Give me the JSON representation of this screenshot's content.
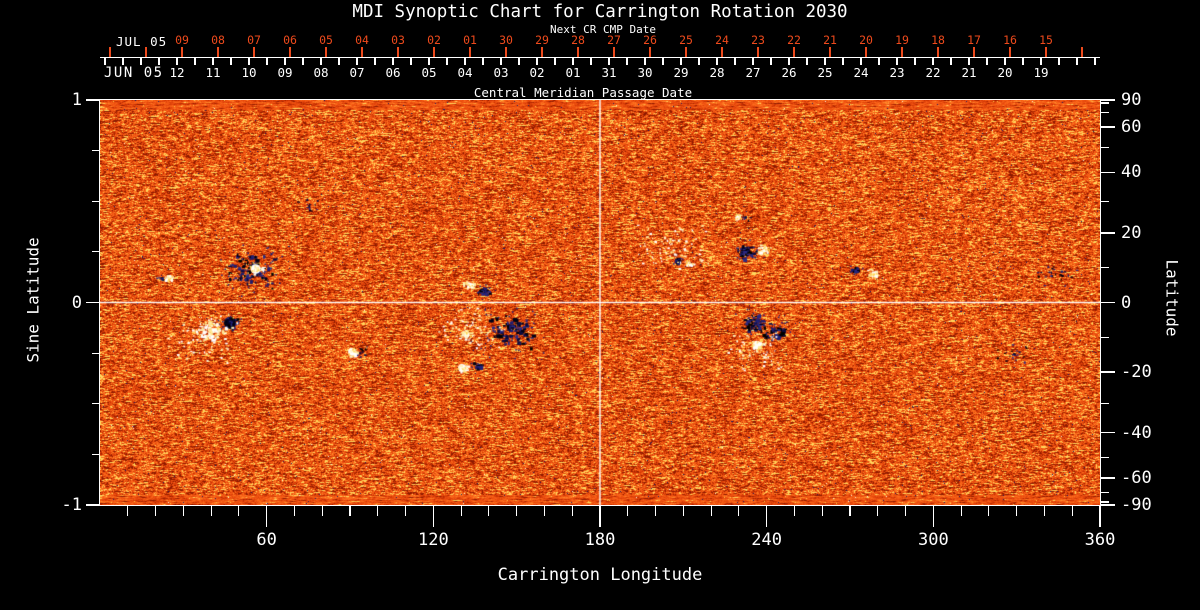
{
  "colors": {
    "background": "#000000",
    "axis": "#ffffff",
    "next_cr_axis": "#ee4a1c",
    "crosshair": "#ffffff",
    "negative_polarity": "#14144c",
    "positive_polarity": "#ffffff",
    "noise_palette": [
      "#8c1a00",
      "#c32f02",
      "#e2440b",
      "#f25713",
      "#fc6b1c",
      "#ff8f2e",
      "#ffd85e"
    ]
  },
  "chart_data": {
    "type": "heatmap",
    "title": "MDI Synoptic Chart for Carrington Rotation 2030",
    "xlabel": "Carrington Longitude",
    "ylabel_left": "Sine Latitude",
    "ylabel_right": "Latitude",
    "xlim": [
      0,
      360
    ],
    "ylim": [
      -1,
      1
    ],
    "x_major_ticks": [
      60,
      120,
      180,
      240,
      300,
      360
    ],
    "x_minor_step_deg": 10,
    "left_major_ticks": [
      "1",
      "0",
      "-1"
    ],
    "left_minor_values": [
      0.75,
      0.5,
      0.25,
      -0.25,
      -0.5,
      -0.75
    ],
    "right_major_ticks": [
      "90",
      "60",
      "40",
      "20",
      "0",
      "-20",
      "-40",
      "-60",
      "-90"
    ],
    "right_minor_lats": [
      80,
      70,
      50,
      30,
      10,
      -10,
      -30,
      -50,
      -70,
      -80
    ],
    "top_axes": {
      "next_cr": {
        "side_label": "JUL 05",
        "axis_title": "Next CR CMP Date",
        "tick_labels": [
          "09",
          "08",
          "07",
          "06",
          "05",
          "04",
          "03",
          "02",
          "01",
          "30",
          "29",
          "28",
          "27",
          "26",
          "25",
          "24",
          "23",
          "22",
          "21",
          "20",
          "19",
          "18",
          "17",
          "16",
          "15"
        ],
        "color": "#ee4a1c"
      },
      "cmp": {
        "side_label": "JUN 05",
        "axis_title": "Central Meridian Passage Date",
        "tick_labels": [
          "12",
          "11",
          "10",
          "09",
          "08",
          "07",
          "06",
          "05",
          "04",
          "03",
          "02",
          "01",
          "31",
          "30",
          "29",
          "28",
          "27",
          "26",
          "25",
          "24",
          "23",
          "22",
          "21",
          "20",
          "19"
        ],
        "color": "#ffffff"
      }
    },
    "grid_crosshair": {
      "longitude_deg": 180,
      "sine_latitude": 0
    },
    "field": "line-of-sight magnetic flux map: noisy orange-red quiet sun with bipolar active regions (dark = negative polarity, white = positive polarity)",
    "active_regions": [
      {
        "name": "AR-A",
        "lon_deg": 54.0,
        "sine_lat": 0.17,
        "polarity": "negative",
        "shape": "sprawl",
        "size": 24
      },
      {
        "name": "AR-A",
        "lon_deg": 56.0,
        "sine_lat": 0.165,
        "polarity": "positive",
        "shape": "core",
        "size": 9
      },
      {
        "name": "AR-B",
        "lon_deg": 24.5,
        "sine_lat": 0.126,
        "polarity": "positive",
        "shape": "compact",
        "size": 6
      },
      {
        "name": "AR-B",
        "lon_deg": 22.0,
        "sine_lat": 0.13,
        "polarity": "negative",
        "shape": "speckle",
        "size": 4
      },
      {
        "name": "AR-C",
        "lon_deg": 46.8,
        "sine_lat": -0.101,
        "polarity": "negative",
        "shape": "core",
        "size": 11
      },
      {
        "name": "AR-C",
        "lon_deg": 39.6,
        "sine_lat": -0.141,
        "polarity": "positive",
        "shape": "sprawl",
        "size": 14
      },
      {
        "name": "AR-C",
        "lon_deg": 36.0,
        "sine_lat": -0.175,
        "polarity": "positive",
        "shape": "plage",
        "size": 26
      },
      {
        "name": "AR-D",
        "lon_deg": 90.7,
        "sine_lat": -0.244,
        "polarity": "positive",
        "shape": "core",
        "size": 7
      },
      {
        "name": "AR-D",
        "lon_deg": 95.0,
        "sine_lat": -0.24,
        "polarity": "negative",
        "shape": "speckle",
        "size": 6
      },
      {
        "name": "AR-E",
        "lon_deg": 132.5,
        "sine_lat": 0.091,
        "polarity": "positive",
        "shape": "compact",
        "size": 8
      },
      {
        "name": "AR-E",
        "lon_deg": 137.9,
        "sine_lat": 0.062,
        "polarity": "negative",
        "shape": "compact",
        "size": 8
      },
      {
        "name": "AR-F",
        "lon_deg": 148.3,
        "sine_lat": -0.136,
        "polarity": "negative",
        "shape": "sprawl",
        "size": 22
      },
      {
        "name": "AR-F",
        "lon_deg": 133.9,
        "sine_lat": -0.121,
        "polarity": "positive",
        "shape": "plage",
        "size": 24
      },
      {
        "name": "AR-F",
        "lon_deg": 131.5,
        "sine_lat": -0.15,
        "polarity": "positive",
        "shape": "compact",
        "size": 7
      },
      {
        "name": "AR-F2",
        "lon_deg": 130.3,
        "sine_lat": -0.323,
        "polarity": "positive",
        "shape": "core",
        "size": 7
      },
      {
        "name": "AR-F2",
        "lon_deg": 135.7,
        "sine_lat": -0.309,
        "polarity": "negative",
        "shape": "compact",
        "size": 6
      },
      {
        "name": "AR-G",
        "lon_deg": 207.7,
        "sine_lat": 0.21,
        "polarity": "negative",
        "shape": "compact",
        "size": 5
      },
      {
        "name": "AR-G",
        "lon_deg": 211.7,
        "sine_lat": 0.195,
        "polarity": "positive",
        "shape": "compact",
        "size": 5
      },
      {
        "name": "AR-H",
        "lon_deg": 232.6,
        "sine_lat": 0.254,
        "polarity": "negative",
        "shape": "sprawl",
        "size": 10
      },
      {
        "name": "AR-H",
        "lon_deg": 239.0,
        "sine_lat": 0.264,
        "polarity": "positive",
        "shape": "compact",
        "size": 9
      },
      {
        "name": "AR-H",
        "lon_deg": 229.3,
        "sine_lat": 0.427,
        "polarity": "positive",
        "shape": "compact",
        "size": 5
      },
      {
        "name": "AR-H",
        "lon_deg": 232.0,
        "sine_lat": 0.415,
        "polarity": "negative",
        "shape": "speckle",
        "size": 4
      },
      {
        "name": "plage-I",
        "lon_deg": 205.9,
        "sine_lat": 0.269,
        "polarity": "positive",
        "shape": "plage",
        "size": 26
      },
      {
        "name": "AR-J",
        "lon_deg": 234.7,
        "sine_lat": -0.096,
        "polarity": "negative",
        "shape": "sprawl",
        "size": 12
      },
      {
        "name": "AR-J",
        "lon_deg": 242.6,
        "sine_lat": -0.141,
        "polarity": "negative",
        "shape": "sprawl",
        "size": 11
      },
      {
        "name": "AR-J",
        "lon_deg": 236.5,
        "sine_lat": -0.21,
        "polarity": "positive",
        "shape": "core",
        "size": 8
      },
      {
        "name": "AR-J",
        "lon_deg": 236.2,
        "sine_lat": -0.235,
        "polarity": "positive",
        "shape": "plage",
        "size": 20
      },
      {
        "name": "AR-K",
        "lon_deg": 271.8,
        "sine_lat": 0.16,
        "polarity": "negative",
        "shape": "compact",
        "size": 7
      },
      {
        "name": "AR-K",
        "lon_deg": 277.6,
        "sine_lat": 0.146,
        "polarity": "positive",
        "shape": "compact",
        "size": 8
      },
      {
        "name": "speckle-L",
        "lon_deg": 343.8,
        "sine_lat": 0.151,
        "polarity": "negative",
        "shape": "speckle",
        "size": 16
      },
      {
        "name": "speckle-L",
        "lon_deg": 328.3,
        "sine_lat": -0.254,
        "polarity": "negative",
        "shape": "speckle",
        "size": 12
      },
      {
        "name": "speckle-M",
        "lon_deg": 74.9,
        "sine_lat": 0.481,
        "polarity": "negative",
        "shape": "speckle",
        "size": 8
      }
    ]
  }
}
